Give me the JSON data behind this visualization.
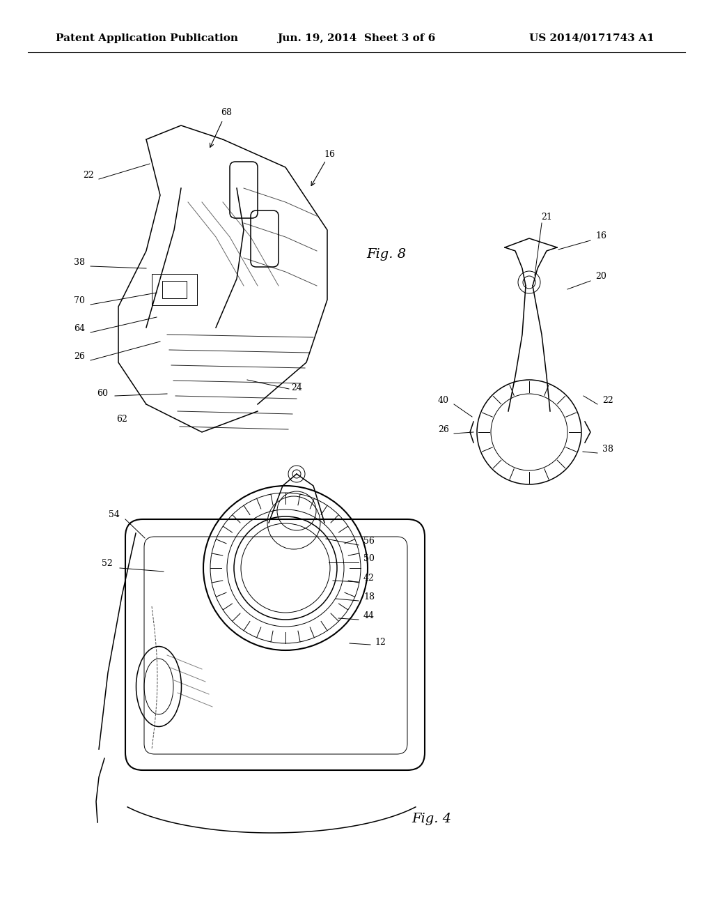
{
  "bg_color": "#ffffff",
  "line_color": "#000000",
  "header_left": "Patent Application Publication",
  "header_center": "Jun. 19, 2014  Sheet 3 of 6",
  "header_right": "US 2014/0171743 A1",
  "fig8_label": "Fig. 8",
  "fig4_label": "Fig. 4",
  "font_size_header": 11,
  "font_size_ref": 9,
  "font_size_fig": 14
}
